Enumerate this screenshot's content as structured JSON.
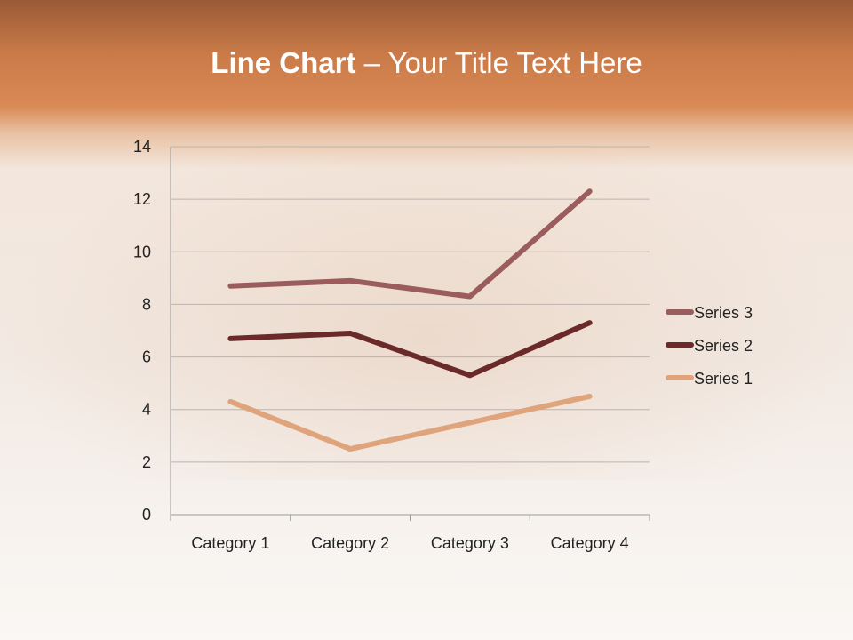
{
  "slide": {
    "title_bold": "Line Chart",
    "title_rest": " – Your Title Text Here"
  },
  "chart_data": {
    "type": "line",
    "stacked": true,
    "title": "",
    "xlabel": "",
    "ylabel": "",
    "categories": [
      "Category 1",
      "Category 2",
      "Category 3",
      "Category 4"
    ],
    "ylim": [
      0,
      14
    ],
    "yticks": [
      0,
      2,
      4,
      6,
      8,
      10,
      12,
      14
    ],
    "grid": true,
    "legend": "right",
    "series": [
      {
        "name": "Series 1",
        "values": [
          4.3,
          2.5,
          3.5,
          4.5
        ],
        "color": "#e0a47c"
      },
      {
        "name": "Series 2",
        "values": [
          2.4,
          4.4,
          1.8,
          2.8
        ],
        "color": "#6b2a2a"
      },
      {
        "name": "Series 3",
        "values": [
          2,
          2,
          3,
          5
        ],
        "color": "#9a5c5c"
      }
    ]
  }
}
